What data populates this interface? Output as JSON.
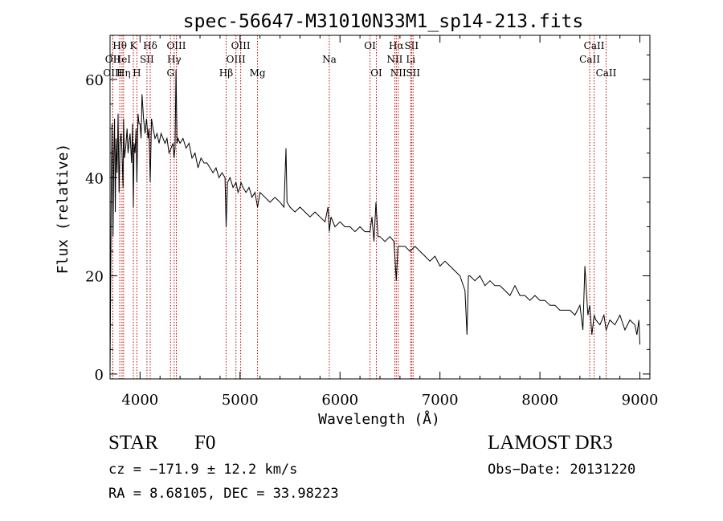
{
  "chart_data": {
    "type": "line",
    "title": "spec-56647-M31010N33M1_sp14-213.fits",
    "xlabel": "Wavelength (Å)",
    "ylabel": "Flux (relative)",
    "xlim": [
      3700,
      9100
    ],
    "ylim": [
      -1,
      69
    ],
    "xticks": [
      4000,
      5000,
      6000,
      7000,
      8000,
      9000
    ],
    "yticks": [
      0,
      20,
      40,
      60
    ],
    "grid": false,
    "series": [
      {
        "name": "flux",
        "x": [
          3700,
          3705,
          3712,
          3720,
          3730,
          3738,
          3745,
          3752,
          3760,
          3770,
          3780,
          3790,
          3800,
          3810,
          3820,
          3830,
          3835,
          3845,
          3860,
          3870,
          3880,
          3889,
          3900,
          3915,
          3925,
          3933,
          3940,
          3950,
          3960,
          3968,
          3980,
          3990,
          4000,
          4010,
          4020,
          4035,
          4050,
          4065,
          4080,
          4090,
          4102,
          4115,
          4130,
          4150,
          4170,
          4190,
          4210,
          4230,
          4250,
          4270,
          4290,
          4310,
          4330,
          4340,
          4350,
          4360,
          4370,
          4380,
          4400,
          4430,
          4460,
          4490,
          4520,
          4550,
          4580,
          4610,
          4640,
          4670,
          4700,
          4730,
          4760,
          4790,
          4820,
          4850,
          4861,
          4875,
          4900,
          4930,
          4960,
          4980,
          5000,
          5010,
          5030,
          5060,
          5090,
          5120,
          5150,
          5175,
          5200,
          5250,
          5300,
          5350,
          5400,
          5440,
          5460,
          5470,
          5500,
          5550,
          5600,
          5650,
          5700,
          5750,
          5800,
          5850,
          5880,
          5893,
          5910,
          5950,
          6000,
          6050,
          6100,
          6150,
          6200,
          6250,
          6300,
          6320,
          6340,
          6360,
          6380,
          6400,
          6450,
          6500,
          6540,
          6563,
          6580,
          6600,
          6650,
          6700,
          6750,
          6800,
          6850,
          6900,
          6950,
          7000,
          7050,
          7100,
          7150,
          7200,
          7250,
          7270,
          7285,
          7300,
          7350,
          7400,
          7450,
          7500,
          7550,
          7600,
          7650,
          7700,
          7750,
          7800,
          7850,
          7900,
          7950,
          8000,
          8050,
          8100,
          8150,
          8200,
          8250,
          8300,
          8350,
          8400,
          8430,
          8450,
          8480,
          8498,
          8520,
          8542,
          8560,
          8600,
          8640,
          8662,
          8700,
          8750,
          8800,
          8850,
          8900,
          8950,
          8970,
          8990,
          9000
        ],
        "values": [
          0,
          15,
          38,
          51,
          28,
          45,
          52,
          33,
          48,
          41,
          53,
          37,
          47,
          49,
          45,
          38,
          52,
          44,
          47,
          50,
          45,
          47,
          49,
          43,
          51,
          34,
          47,
          45,
          50,
          39,
          53,
          51,
          51,
          48,
          57,
          52,
          49,
          52,
          48,
          50,
          39,
          52,
          50,
          48,
          49,
          47,
          49,
          48,
          47,
          48,
          45,
          46,
          47,
          44,
          46,
          62,
          47,
          48,
          47,
          48,
          46,
          47,
          44,
          45,
          42,
          44,
          43,
          43,
          42,
          41,
          42,
          40,
          41,
          40,
          30,
          39,
          40,
          38,
          39,
          37,
          38,
          39,
          38,
          37,
          38,
          36,
          37,
          34,
          37,
          36,
          35,
          36,
          35,
          34,
          46,
          35,
          34,
          33,
          34,
          33,
          32,
          33,
          32,
          31,
          34,
          29,
          32,
          30,
          31,
          30,
          30,
          29,
          30,
          29,
          29,
          32,
          27,
          35,
          28,
          28,
          27,
          28,
          27,
          19,
          26,
          26,
          26,
          25,
          26,
          25,
          24,
          23,
          24,
          22,
          23,
          22,
          21,
          20,
          17,
          8,
          20,
          20,
          19,
          20,
          18,
          19,
          18,
          18,
          17,
          16,
          18,
          16,
          16,
          15,
          16,
          15,
          15,
          14,
          14,
          13,
          13,
          13,
          12,
          14,
          9,
          22,
          12,
          14,
          8,
          12,
          11,
          10,
          12,
          9,
          11,
          10,
          12,
          9,
          11,
          10,
          8,
          11,
          6
        ]
      }
    ],
    "lines": [
      {
        "label": "Hθ",
        "x": 3797,
        "row": 0
      },
      {
        "label": "OII",
        "x": 3727,
        "row": 1
      },
      {
        "label": "OIII",
        "x": 3727,
        "row": 2
      },
      {
        "label": "HeI",
        "x": 3820,
        "row": 1
      },
      {
        "label": "Hη",
        "x": 3835,
        "row": 2
      },
      {
        "label": "K",
        "x": 3933,
        "row": 0
      },
      {
        "label": "SII",
        "x": 4069,
        "row": 1
      },
      {
        "label": "H",
        "x": 3968,
        "row": 2
      },
      {
        "label": "Hδ",
        "x": 4102,
        "row": 0
      },
      {
        "label": "OIII",
        "x": 4363,
        "row": 0
      },
      {
        "label": "Hγ",
        "x": 4341,
        "row": 1
      },
      {
        "label": "G",
        "x": 4305,
        "row": 2
      },
      {
        "label": "OIII",
        "x": 5007,
        "row": 0
      },
      {
        "label": "OIII",
        "x": 4959,
        "row": 1
      },
      {
        "label": "Hβ",
        "x": 4861,
        "row": 2
      },
      {
        "label": "Mg",
        "x": 5175,
        "row": 2
      },
      {
        "label": "Na",
        "x": 5893,
        "row": 1
      },
      {
        "label": "OI",
        "x": 6300,
        "row": 0
      },
      {
        "label": "OI",
        "x": 6364,
        "row": 2
      },
      {
        "label": "Hα",
        "x": 6563,
        "row": 0
      },
      {
        "label": "SII",
        "x": 6716,
        "row": 0
      },
      {
        "label": "NII",
        "x": 6548,
        "row": 1
      },
      {
        "label": "Li",
        "x": 6708,
        "row": 1
      },
      {
        "label": "NII",
        "x": 6583,
        "row": 2
      },
      {
        "label": "SII",
        "x": 6731,
        "row": 2
      },
      {
        "label": "CaII",
        "x": 8542,
        "row": 0
      },
      {
        "label": "CaII",
        "x": 8498,
        "row": 1
      },
      {
        "label": "CaII",
        "x": 8662,
        "row": 2
      }
    ]
  },
  "info": {
    "class": "STAR",
    "subclass": "F0",
    "survey": "LAMOST DR3",
    "cz": "cz = −171.9 ± 12.2 km/s",
    "obs_date": "Obs−Date: 20131220",
    "radec": "RA =   8.68105, DEC =  33.98223"
  }
}
